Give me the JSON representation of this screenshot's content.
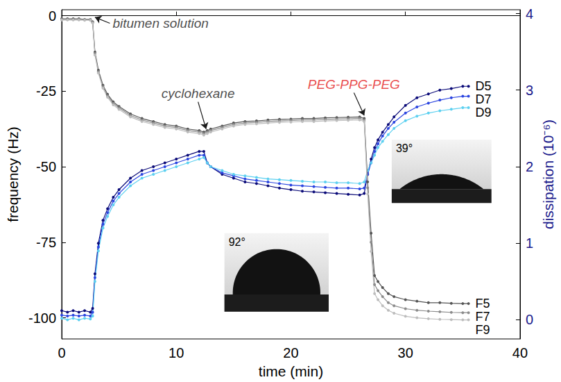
{
  "chart_data": {
    "type": "line",
    "xlabel": "time (min)",
    "ylabel": "frequency (Hz)",
    "y2label": "dissipation (10⁻⁶)",
    "xlim": [
      0,
      40
    ],
    "xticks": [
      0,
      10,
      20,
      30,
      40
    ],
    "ylim": [
      -107,
      2
    ],
    "yticks": [
      -100,
      -75,
      -50,
      -25,
      0
    ],
    "y2lim": [
      -0.25,
      4.05
    ],
    "y2ticks": [
      0,
      1,
      2,
      3,
      4
    ],
    "grid": false,
    "marker": "circle",
    "line_style": "solid",
    "x": [
      0,
      0.5,
      1,
      1.5,
      2,
      2.5,
      2.7,
      2.9,
      3.2,
      3.6,
      4,
      4.5,
      5,
      6,
      7,
      8,
      9,
      10,
      11,
      12,
      12.4,
      12.7,
      13,
      14,
      15,
      16,
      17,
      18,
      19,
      20,
      21,
      22,
      23,
      24,
      25,
      26,
      26.4,
      26.7,
      27,
      27.3,
      27.6,
      28,
      28.5,
      29,
      30,
      31,
      32,
      33,
      34,
      35,
      35.5
    ],
    "series": [
      {
        "name": "D5",
        "color": "#0a0a78",
        "axis": "y2",
        "values": [
          0.12,
          0.1,
          0.12,
          0.1,
          0.12,
          0.1,
          0.15,
          0.6,
          1.0,
          1.3,
          1.45,
          1.6,
          1.7,
          1.85,
          1.95,
          2.0,
          2.05,
          2.1,
          2.15,
          2.2,
          2.2,
          2.05,
          2.0,
          1.9,
          1.85,
          1.8,
          1.78,
          1.75,
          1.72,
          1.7,
          1.68,
          1.67,
          1.66,
          1.65,
          1.64,
          1.63,
          1.65,
          1.9,
          2.1,
          2.25,
          2.35,
          2.45,
          2.55,
          2.65,
          2.8,
          2.9,
          2.95,
          3.0,
          3.02,
          3.05,
          3.05
        ]
      },
      {
        "name": "D7",
        "color": "#2b45e0",
        "axis": "y2",
        "values": [
          0.06,
          0.05,
          0.06,
          0.05,
          0.06,
          0.05,
          0.1,
          0.55,
          0.95,
          1.25,
          1.4,
          1.55,
          1.65,
          1.8,
          1.9,
          1.95,
          2.0,
          2.05,
          2.1,
          2.15,
          2.15,
          2.05,
          2.0,
          1.92,
          1.88,
          1.84,
          1.82,
          1.8,
          1.78,
          1.76,
          1.75,
          1.74,
          1.73,
          1.72,
          1.72,
          1.71,
          1.72,
          1.9,
          2.05,
          2.2,
          2.3,
          2.4,
          2.5,
          2.58,
          2.7,
          2.78,
          2.83,
          2.87,
          2.9,
          2.92,
          2.92
        ]
      },
      {
        "name": "D9",
        "color": "#5cd0f0",
        "axis": "y2",
        "values": [
          0.02,
          0.0,
          0.02,
          0.0,
          0.02,
          0.01,
          0.05,
          0.5,
          0.9,
          1.2,
          1.35,
          1.5,
          1.6,
          1.75,
          1.85,
          1.9,
          1.95,
          2.0,
          2.05,
          2.1,
          2.12,
          2.05,
          2.0,
          1.95,
          1.9,
          1.88,
          1.86,
          1.84,
          1.83,
          1.82,
          1.81,
          1.8,
          1.8,
          1.79,
          1.79,
          1.78,
          1.8,
          1.95,
          2.05,
          2.15,
          2.25,
          2.33,
          2.42,
          2.5,
          2.6,
          2.66,
          2.7,
          2.73,
          2.75,
          2.77,
          2.77
        ]
      },
      {
        "name": "F5",
        "color": "#555555",
        "values": [
          -1,
          -1,
          -1,
          -1,
          -1.2,
          -1.2,
          -2,
          -12,
          -18,
          -23,
          -26,
          -28.5,
          -30,
          -32.5,
          -34,
          -35,
          -36,
          -36.5,
          -37.5,
          -38,
          -38.5,
          -38,
          -37.5,
          -36.5,
          -35.5,
          -35,
          -34.8,
          -34.5,
          -34.3,
          -34.2,
          -34,
          -34,
          -33.8,
          -33.7,
          -33.6,
          -33.5,
          -34,
          -55,
          -72,
          -86,
          -88,
          -90,
          -92,
          -93,
          -94,
          -94.5,
          -95,
          -95,
          -95.2,
          -95.3,
          -95.3
        ]
      },
      {
        "name": "F7",
        "color": "#8c8c8c",
        "values": [
          -1.2,
          -1.2,
          -1.2,
          -1.2,
          -1.3,
          -1.3,
          -2.2,
          -12.5,
          -18.5,
          -23.5,
          -26.5,
          -29,
          -30.5,
          -33,
          -34.5,
          -35.5,
          -36.5,
          -37,
          -38,
          -38.5,
          -39,
          -38.5,
          -38,
          -37,
          -36,
          -35.5,
          -35.3,
          -35,
          -34.8,
          -34.7,
          -34.5,
          -34.5,
          -34.3,
          -34.2,
          -34.1,
          -34,
          -34.5,
          -57,
          -75,
          -89,
          -91,
          -93,
          -95,
          -96,
          -97,
          -97.5,
          -97.8,
          -98,
          -98.2,
          -98.3,
          -98.3
        ]
      },
      {
        "name": "F9",
        "color": "#bdbdbd",
        "values": [
          -1.4,
          -1.4,
          -1.4,
          -1.4,
          -1.5,
          -1.5,
          -2.4,
          -13,
          -19,
          -24,
          -27,
          -29.5,
          -31,
          -33.5,
          -35,
          -36,
          -37,
          -37.5,
          -38.5,
          -39,
          -39.5,
          -39,
          -38.5,
          -37.5,
          -36.5,
          -36,
          -35.8,
          -35.5,
          -35.3,
          -35.2,
          -35,
          -35,
          -34.8,
          -34.7,
          -34.6,
          -34.5,
          -35,
          -59,
          -78,
          -92,
          -94,
          -96,
          -97.5,
          -98.5,
          -99.5,
          -100,
          -100.3,
          -100.5,
          -100.6,
          -100.7,
          -100.7
        ]
      }
    ],
    "annotations": [
      {
        "text": "bitumen solution",
        "x": 4.2,
        "y": -2.5,
        "arrow_to": [
          2.9,
          -0.5
        ],
        "color": "#1a1a1a"
      },
      {
        "text": "cyclohexane",
        "x": 11.9,
        "y": -28.5,
        "arrow_to": [
          12.6,
          -37.5
        ],
        "color": "#1a1a1a"
      },
      {
        "text": "PEG-PPG-PEG",
        "x": 25.5,
        "y": -25.5,
        "arrow_to": [
          26.4,
          -33
        ],
        "color": "#e41a1c"
      }
    ],
    "insets": [
      {
        "label": "92°"
      },
      {
        "label": "39°"
      }
    ]
  }
}
